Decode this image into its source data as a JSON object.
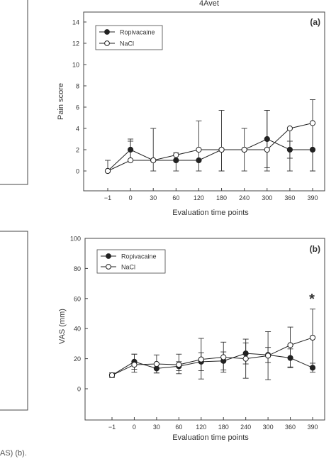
{
  "page_title": "4Avet",
  "caption_fragment": "AS) (b).",
  "chart_data": [
    {
      "type": "line",
      "panel_label": "(a)",
      "title": "4Avet",
      "xlabel": "Evaluation time points",
      "ylabel": "Pain score",
      "categories": [
        "−1",
        "0",
        "30",
        "60",
        "120",
        "180",
        "240",
        "300",
        "360",
        "390"
      ],
      "ylim": [
        -2,
        15
      ],
      "yticks": [
        0,
        2,
        4,
        6,
        8,
        10,
        12,
        14
      ],
      "legend_position": "top-left",
      "series": [
        {
          "name": "Ropivacaine",
          "marker": "filled",
          "values": [
            0,
            2,
            1,
            1,
            1,
            2,
            2,
            3,
            2,
            2
          ],
          "err_low": [
            0,
            1,
            0,
            0,
            0,
            2,
            2,
            2.7,
            0.8,
            2
          ],
          "err_high": [
            1,
            1,
            0,
            0,
            0,
            0,
            0,
            2.7,
            0.8,
            0
          ]
        },
        {
          "name": "NaCl",
          "marker": "open",
          "values": [
            0,
            1,
            1,
            1.5,
            2,
            2,
            2,
            2,
            4,
            4.5
          ],
          "err_low": [
            0,
            0,
            1,
            1.5,
            2,
            2,
            0,
            2,
            4,
            4.5
          ],
          "err_high": [
            0,
            1.8,
            3,
            0.2,
            2.7,
            3.7,
            2,
            3.7,
            0,
            2.2
          ]
        }
      ]
    },
    {
      "type": "line",
      "panel_label": "(b)",
      "xlabel": "Evaluation time points",
      "ylabel": "VAS (mm)",
      "categories": [
        "−1",
        "0",
        "30",
        "60",
        "120",
        "180",
        "240",
        "300",
        "360",
        "390"
      ],
      "ylim": [
        -10,
        100
      ],
      "yticks": [
        0,
        20,
        40,
        60,
        80,
        100
      ],
      "legend_position": "top-left",
      "annotation": "*",
      "series": [
        {
          "name": "Ropivacaine",
          "marker": "filled",
          "values": [
            9,
            18,
            13.5,
            15,
            18,
            18.5,
            23.5,
            22.5,
            20.5,
            14
          ],
          "err_low": [
            1.5,
            5,
            3,
            3,
            6,
            6,
            7,
            5,
            6,
            3
          ],
          "err_high": [
            1.5,
            5,
            3,
            3,
            6,
            6,
            7,
            5,
            6,
            3
          ]
        },
        {
          "name": "NaCl",
          "marker": "open",
          "values": [
            9,
            16,
            16.5,
            16,
            19.5,
            21,
            20,
            22,
            29,
            34
          ],
          "err_low": [
            1.5,
            5,
            6,
            6,
            13,
            10,
            13,
            16,
            15,
            20
          ],
          "err_high": [
            1.5,
            7,
            6,
            7,
            14,
            10,
            13,
            16,
            12,
            19
          ]
        }
      ]
    }
  ]
}
